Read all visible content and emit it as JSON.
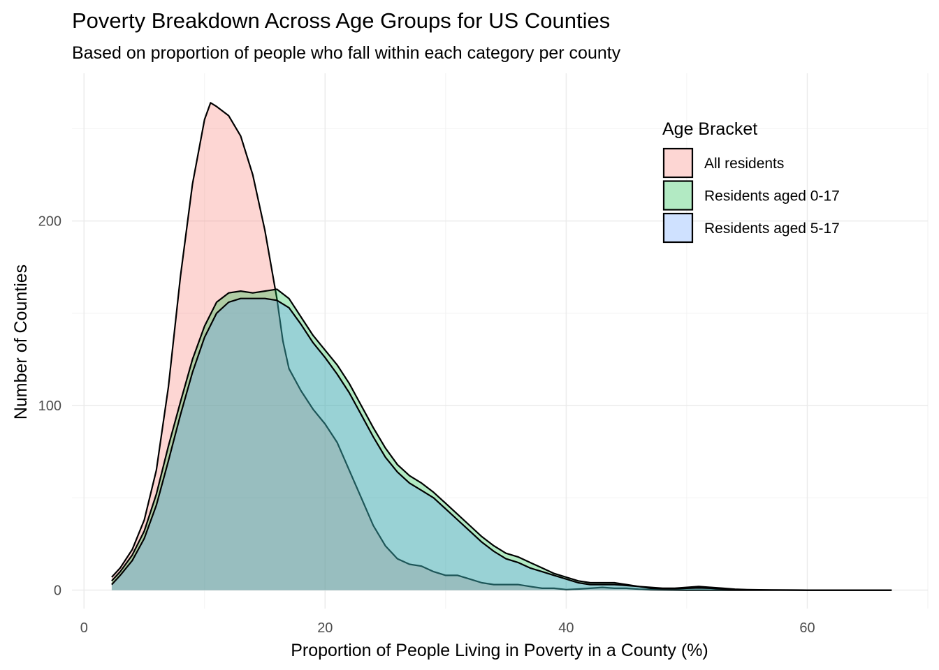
{
  "chart_data": {
    "type": "area",
    "subtype": "density",
    "title": "Poverty Breakdown Across Age Groups for US Counties",
    "subtitle": "Based on proportion of people who fall within each category per county",
    "xlabel": "Proportion of People Living in Poverty in a County (%)",
    "ylabel": "Number of Counties",
    "xlim": [
      -1,
      70
    ],
    "ylim": [
      -10,
      280
    ],
    "x_ticks": [
      0,
      20,
      40,
      60
    ],
    "y_ticks": [
      0,
      100,
      200
    ],
    "x_tick_labels": [
      "0",
      "20",
      "40",
      "60"
    ],
    "y_tick_labels": [
      "0",
      "100",
      "200"
    ],
    "grid": true,
    "legend": {
      "title": "Age Bracket",
      "position": "top-right",
      "entries": [
        "All residents",
        "Residents aged 0-17",
        "Residents aged 5-17"
      ]
    },
    "series": [
      {
        "name": "All residents",
        "color": "#F8766D",
        "points": [
          [
            2.3,
            7
          ],
          [
            3,
            12
          ],
          [
            4,
            22
          ],
          [
            5,
            38
          ],
          [
            6,
            65
          ],
          [
            7,
            110
          ],
          [
            8,
            170
          ],
          [
            9,
            220
          ],
          [
            10,
            255
          ],
          [
            10.5,
            264
          ],
          [
            11,
            262
          ],
          [
            12,
            257
          ],
          [
            13,
            246
          ],
          [
            14,
            225
          ],
          [
            15,
            195
          ],
          [
            16,
            158
          ],
          [
            16.5,
            135
          ],
          [
            17,
            120
          ],
          [
            18,
            108
          ],
          [
            19,
            98
          ],
          [
            20,
            90
          ],
          [
            21,
            80
          ],
          [
            22,
            65
          ],
          [
            23,
            50
          ],
          [
            24,
            35
          ],
          [
            25,
            24
          ],
          [
            26,
            17
          ],
          [
            27,
            14
          ],
          [
            28,
            13
          ],
          [
            29,
            10
          ],
          [
            30,
            8
          ],
          [
            31,
            8
          ],
          [
            32,
            6
          ],
          [
            33,
            4
          ],
          [
            34,
            3
          ],
          [
            35,
            3
          ],
          [
            36,
            3
          ],
          [
            37,
            2
          ],
          [
            38,
            1
          ],
          [
            39,
            1
          ],
          [
            40,
            0.3
          ],
          [
            41,
            0.6
          ],
          [
            42,
            1
          ],
          [
            43,
            1.5
          ],
          [
            44,
            1
          ],
          [
            45,
            1
          ],
          [
            46,
            0.5
          ],
          [
            47,
            0.2
          ],
          [
            50,
            0
          ],
          [
            55,
            0
          ],
          [
            60,
            0
          ],
          [
            67,
            0
          ]
        ]
      },
      {
        "name": "Residents aged 0-17",
        "color": "#00BA38",
        "points": [
          [
            2.3,
            5
          ],
          [
            3,
            10
          ],
          [
            4,
            19
          ],
          [
            5,
            32
          ],
          [
            6,
            52
          ],
          [
            7,
            78
          ],
          [
            8,
            102
          ],
          [
            9,
            125
          ],
          [
            10,
            143
          ],
          [
            11,
            156
          ],
          [
            12,
            161
          ],
          [
            13,
            162
          ],
          [
            14,
            161
          ],
          [
            15,
            162
          ],
          [
            16,
            163
          ],
          [
            17,
            158
          ],
          [
            18,
            148
          ],
          [
            19,
            138
          ],
          [
            20,
            130
          ],
          [
            21,
            122
          ],
          [
            22,
            112
          ],
          [
            23,
            100
          ],
          [
            24,
            88
          ],
          [
            25,
            77
          ],
          [
            26,
            68
          ],
          [
            27,
            62
          ],
          [
            28,
            58
          ],
          [
            29,
            53
          ],
          [
            30,
            47
          ],
          [
            31,
            41
          ],
          [
            32,
            35
          ],
          [
            33,
            29
          ],
          [
            34,
            24
          ],
          [
            35,
            20
          ],
          [
            36,
            18
          ],
          [
            37,
            15
          ],
          [
            38,
            12
          ],
          [
            39,
            9
          ],
          [
            40,
            7
          ],
          [
            41,
            5
          ],
          [
            42,
            4
          ],
          [
            43,
            4
          ],
          [
            44,
            4
          ],
          [
            45,
            3
          ],
          [
            46,
            2
          ],
          [
            47,
            1.5
          ],
          [
            48,
            1
          ],
          [
            49,
            1
          ],
          [
            50,
            1.5
          ],
          [
            51,
            2
          ],
          [
            52,
            1.5
          ],
          [
            53,
            1
          ],
          [
            54,
            0.5
          ],
          [
            55,
            0.3
          ],
          [
            57,
            0.1
          ],
          [
            60,
            0
          ],
          [
            67,
            0
          ]
        ]
      },
      {
        "name": "Residents aged 5-17",
        "color": "#619CFF",
        "points": [
          [
            2.3,
            3
          ],
          [
            3,
            8
          ],
          [
            4,
            16
          ],
          [
            5,
            28
          ],
          [
            6,
            46
          ],
          [
            7,
            70
          ],
          [
            8,
            95
          ],
          [
            9,
            118
          ],
          [
            10,
            137
          ],
          [
            11,
            150
          ],
          [
            12,
            156
          ],
          [
            13,
            158
          ],
          [
            14,
            158
          ],
          [
            15,
            158
          ],
          [
            16,
            157
          ],
          [
            17,
            153
          ],
          [
            18,
            144
          ],
          [
            19,
            134
          ],
          [
            20,
            126
          ],
          [
            21,
            117
          ],
          [
            22,
            107
          ],
          [
            23,
            95
          ],
          [
            24,
            83
          ],
          [
            25,
            72
          ],
          [
            26,
            64
          ],
          [
            27,
            58
          ],
          [
            28,
            54
          ],
          [
            29,
            50
          ],
          [
            30,
            44
          ],
          [
            31,
            38
          ],
          [
            32,
            32
          ],
          [
            33,
            26
          ],
          [
            34,
            21
          ],
          [
            35,
            17
          ],
          [
            36,
            15
          ],
          [
            37,
            12
          ],
          [
            38,
            10
          ],
          [
            39,
            8
          ],
          [
            40,
            6
          ],
          [
            41,
            4
          ],
          [
            42,
            3
          ],
          [
            43,
            3
          ],
          [
            44,
            3
          ],
          [
            45,
            2.5
          ],
          [
            46,
            2
          ],
          [
            47,
            1
          ],
          [
            48,
            0.7
          ],
          [
            49,
            0.7
          ],
          [
            50,
            1
          ],
          [
            51,
            1.2
          ],
          [
            52,
            1
          ],
          [
            53,
            0.6
          ],
          [
            54,
            0.3
          ],
          [
            56,
            0.1
          ],
          [
            60,
            0
          ],
          [
            67,
            0
          ]
        ]
      }
    ]
  }
}
